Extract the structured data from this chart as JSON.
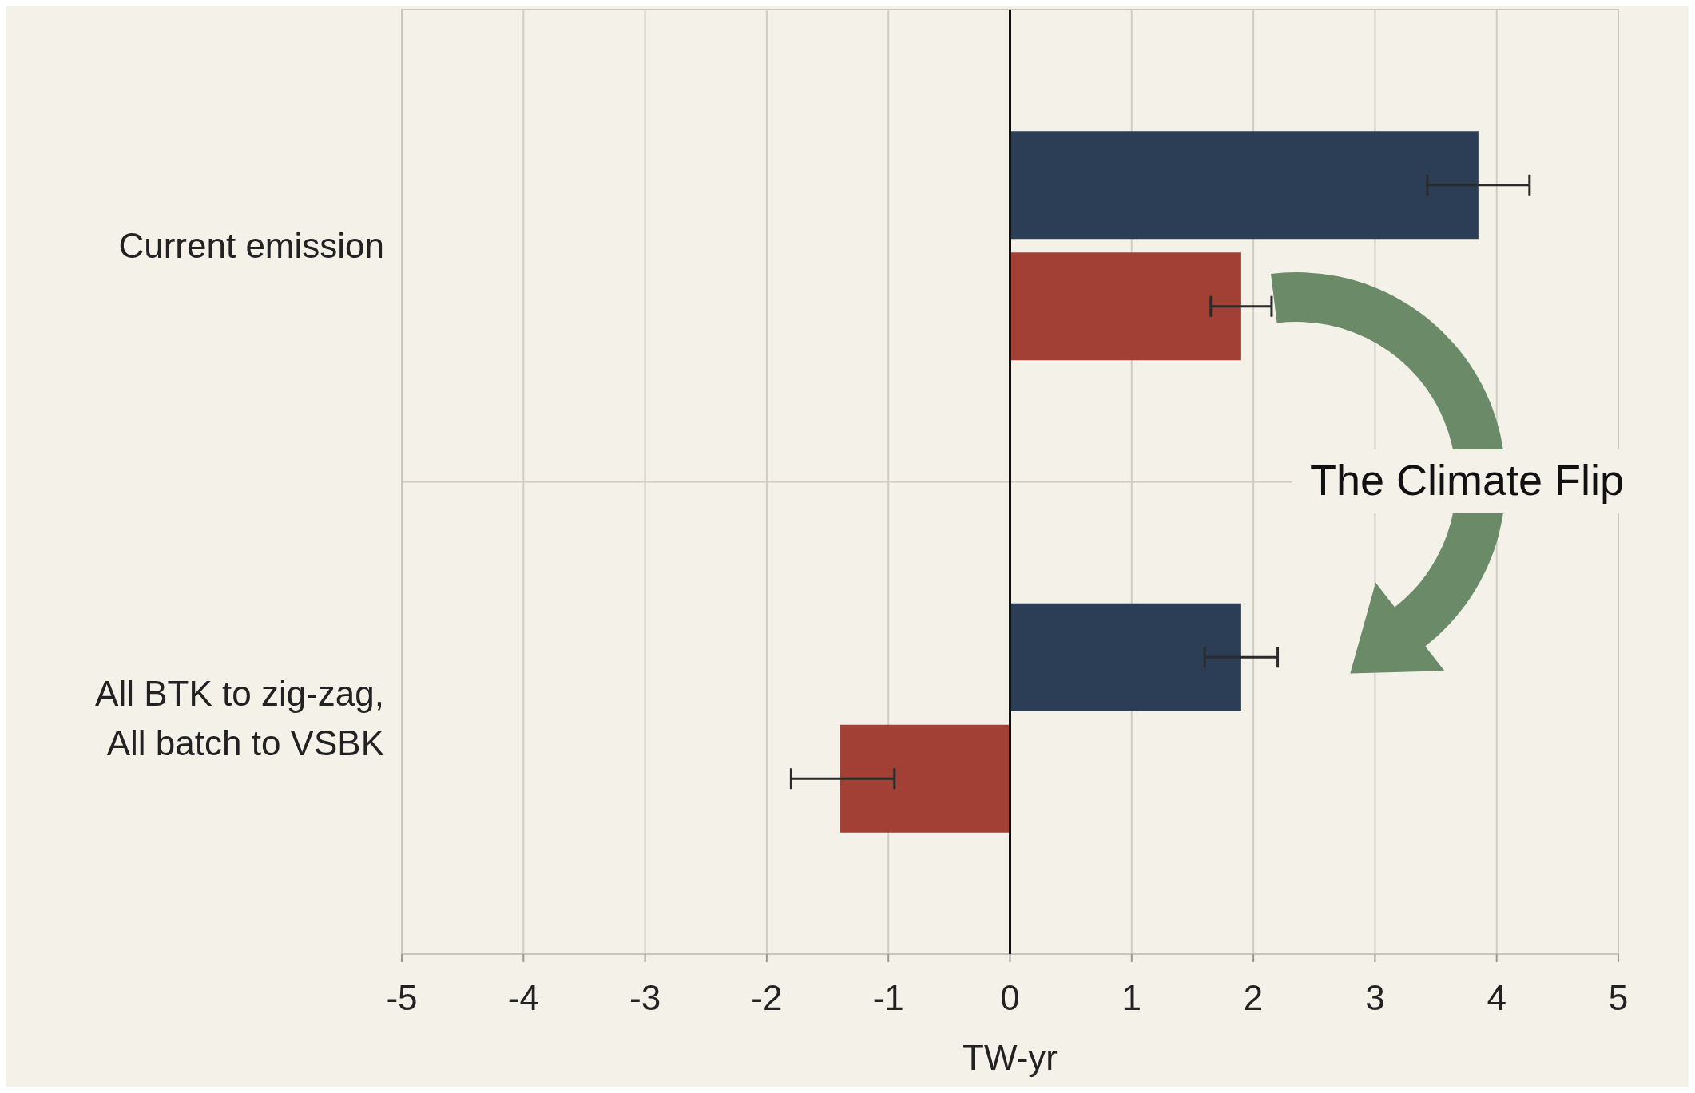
{
  "chart_data": {
    "type": "bar",
    "orientation": "horizontal",
    "xlabel": "TW-yr",
    "categories": [
      "Current emission",
      "All BTK to zig-zag, All batch to VSBK"
    ],
    "series": [
      {
        "color": "#2c3e55",
        "values": [
          3.85,
          1.9
        ],
        "errors": [
          0.42,
          0.3
        ]
      },
      {
        "color": "#a34035",
        "values": [
          1.9,
          -1.4
        ],
        "errors": [
          0.25,
          [
            -1.8,
            -0.95
          ]
        ]
      }
    ],
    "xlim": [
      -5,
      5
    ],
    "xticks": [
      -5,
      -4,
      -3,
      -2,
      -1,
      0,
      1,
      2,
      3,
      4,
      5
    ],
    "grid": true,
    "annotations": [
      "The Climate Flip"
    ]
  }
}
